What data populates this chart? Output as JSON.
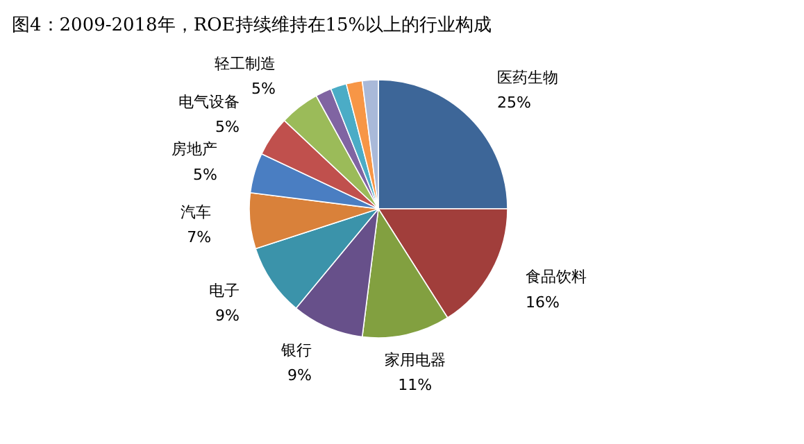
{
  "chart_data": {
    "type": "pie",
    "title": "图4：2009-2018年，ROE持续维持在15%以上的行业构成",
    "categories": [
      "医药生物",
      "食品饮料",
      "家用电器",
      "银行",
      "电子",
      "汽车",
      "房地产",
      "电气设备",
      "轻工制造",
      null,
      null,
      null,
      null
    ],
    "values": [
      25,
      16,
      11,
      9,
      9,
      7,
      5,
      5,
      5,
      2,
      2,
      2,
      2
    ],
    "value_labels": [
      "25%",
      "16%",
      "11%",
      "9%",
      "9%",
      "7%",
      "5%",
      "5%",
      "5%",
      null,
      null,
      null,
      null
    ],
    "colors": [
      "#3d6698",
      "#a13e3b",
      "#82a040",
      "#67508a",
      "#3b93aa",
      "#d9813a",
      "#4a7ec2",
      "#c0504d",
      "#9bbb59",
      "#8064a2",
      "#4bacc6",
      "#f79646",
      "#a9b9d9"
    ]
  }
}
